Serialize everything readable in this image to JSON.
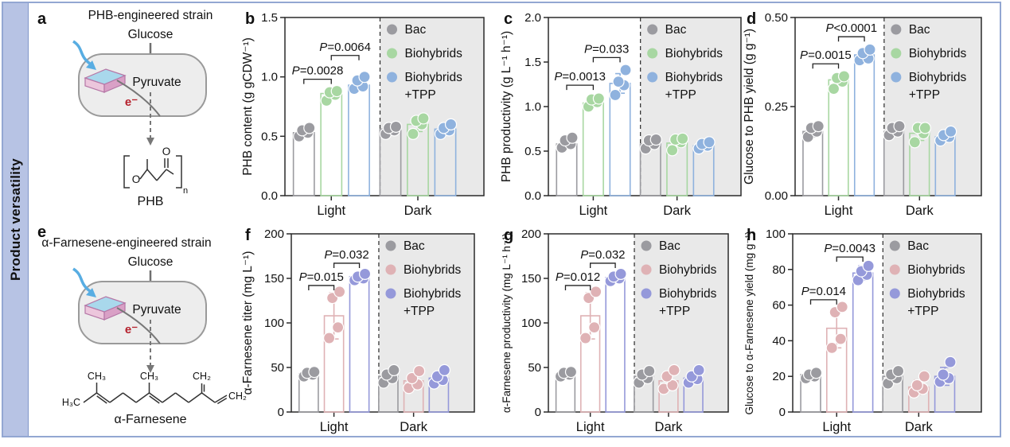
{
  "sidebar": {
    "label": "Product versatility"
  },
  "colors": {
    "gray": "#9b9ba0",
    "green": "#a8d7a2",
    "blue": "#8fb2de",
    "pink": "#dfb2b5",
    "purple": "#9599da",
    "shade": "#e9e9e9",
    "axis": "#2a2a2a",
    "cell_fill": "#ededed",
    "cell_stroke": "#9a9a9a",
    "arrow_gray": "#6f6f6f",
    "light_arrow": "#58ade2",
    "electron_red": "#b5202c",
    "slab_top": "#a9d8ec",
    "slab_front": "#ecc6dc",
    "slab_side": "#d9a0c6",
    "slab_stroke": "#b576a6",
    "frame": "#93a7d2",
    "sidebar_bg": "#b7c3e4"
  },
  "legend": {
    "entries": [
      {
        "label": "Bac"
      },
      {
        "label": "Biohybrids"
      },
      {
        "label": "Biohybrids",
        "label2": "+TPP"
      }
    ]
  },
  "diagrams": [
    {
      "panel": "a",
      "title": "PHB-engineered strain",
      "substrate": "Glucose",
      "intermediate": "Pyruvate",
      "electron": "e⁻",
      "product": "PHB",
      "structure": "phb",
      "atoms": {
        "ring_o": "O",
        "carbonyl_o": "O",
        "subscript": "n"
      }
    },
    {
      "panel": "e",
      "title": "α-Farnesene-engineered strain",
      "substrate": "Glucose",
      "intermediate": "Pyruvate",
      "electron": "e⁻",
      "product": "α-Farnesene",
      "structure": "farnesene",
      "atoms": {
        "h3c": "H₃C",
        "ch3_1": "CH₃",
        "ch3_2": "CH₃",
        "ch2_top": "CH₂",
        "ch2_end": "CH₂"
      }
    }
  ],
  "chart_data": [
    {
      "panel": "b",
      "type": "bar",
      "ylabel": "PHB content (g gCDW⁻¹)",
      "ylim": [
        0,
        1.5
      ],
      "yticks": [
        "0.0",
        "0.5",
        "1.0",
        "1.5"
      ],
      "groups": [
        "Light",
        "Dark"
      ],
      "series": [
        {
          "name": "Bac",
          "color": "gray",
          "bars": [
            0.53,
            0.56
          ],
          "errors": [
            0.03,
            0.03
          ],
          "points": [
            [
              0.5,
              0.53,
              0.55,
              0.57
            ],
            [
              0.52,
              0.55,
              0.57,
              0.58
            ]
          ]
        },
        {
          "name": "Biohybrids",
          "color": "green",
          "bars": [
            0.86,
            0.6
          ],
          "errors": [
            0.04,
            0.06
          ],
          "points": [
            [
              0.8,
              0.85,
              0.87,
              0.88
            ],
            [
              0.52,
              0.6,
              0.63,
              0.65
            ]
          ]
        },
        {
          "name": "Biohybrids +TPP",
          "color": "blue",
          "bars": [
            0.93,
            0.56
          ],
          "errors": [
            0.04,
            0.03
          ],
          "points": [
            [
              0.9,
              0.92,
              0.97,
              1.0
            ],
            [
              0.52,
              0.55,
              0.57,
              0.6
            ]
          ]
        }
      ],
      "pvalues": [
        {
          "label": "P=0.0028",
          "from": 0,
          "to": 1,
          "y": 0.98
        },
        {
          "label": "P=0.0064",
          "from": 1,
          "to": 2,
          "y": 1.18
        }
      ]
    },
    {
      "panel": "c",
      "type": "bar",
      "ylabel": "PHB productivity (g L⁻¹ h⁻¹)",
      "ylim": [
        0,
        2.0
      ],
      "yticks": [
        "0.0",
        "0.5",
        "1.0",
        "1.5",
        "2.0"
      ],
      "groups": [
        "Light",
        "Dark"
      ],
      "series": [
        {
          "name": "Bac",
          "color": "gray",
          "bars": [
            0.58,
            0.58
          ],
          "errors": [
            0.04,
            0.04
          ],
          "points": [
            [
              0.54,
              0.58,
              0.62,
              0.65
            ],
            [
              0.53,
              0.58,
              0.62,
              0.63
            ]
          ]
        },
        {
          "name": "Biohybrids",
          "color": "green",
          "bars": [
            1.04,
            0.59
          ],
          "errors": [
            0.04,
            0.05
          ],
          "points": [
            [
              1.0,
              1.05,
              1.08,
              1.09
            ],
            [
              0.51,
              0.6,
              0.63,
              0.64
            ]
          ]
        },
        {
          "name": "Biohybrids +TPP",
          "color": "blue",
          "bars": [
            1.26,
            0.56
          ],
          "errors": [
            0.11,
            0.03
          ],
          "points": [
            [
              1.13,
              1.24,
              1.28,
              1.41
            ],
            [
              0.53,
              0.56,
              0.58,
              0.6
            ]
          ]
        }
      ],
      "pvalues": [
        {
          "label": "P=0.0013",
          "from": 0,
          "to": 1,
          "y": 1.24
        },
        {
          "label": "P=0.033",
          "from": 1,
          "to": 2,
          "y": 1.55
        }
      ]
    },
    {
      "panel": "d",
      "type": "bar",
      "ylabel": "Glucose to PHB yield (g g⁻¹)",
      "ylim": [
        0,
        0.5
      ],
      "yticks": [
        "0.00",
        "0.25",
        "0.50"
      ],
      "groups": [
        "Light",
        "Dark"
      ],
      "series": [
        {
          "name": "Bac",
          "color": "gray",
          "bars": [
            0.18,
            0.18
          ],
          "errors": [
            0.015,
            0.013
          ],
          "points": [
            [
              0.165,
              0.18,
              0.19,
              0.195
            ],
            [
              0.17,
              0.18,
              0.19,
              0.195
            ]
          ]
        },
        {
          "name": "Biohybrids",
          "color": "green",
          "bars": [
            0.325,
            0.175
          ],
          "errors": [
            0.015,
            0.02
          ],
          "points": [
            [
              0.3,
              0.32,
              0.33,
              0.335
            ],
            [
              0.15,
              0.175,
              0.19,
              0.19
            ]
          ]
        },
        {
          "name": "Biohybrids +TPP",
          "color": "blue",
          "bars": [
            0.395,
            0.165
          ],
          "errors": [
            0.015,
            0.012
          ],
          "points": [
            [
              0.38,
              0.385,
              0.4,
              0.41
            ],
            [
              0.155,
              0.165,
              0.17,
              0.18
            ]
          ]
        }
      ],
      "pvalues": [
        {
          "label": "P=0.0015",
          "from": 0,
          "to": 1,
          "y": 0.37
        },
        {
          "label": "P<0.0001",
          "from": 1,
          "to": 2,
          "y": 0.446
        }
      ]
    },
    {
      "panel": "f",
      "type": "bar",
      "ylabel": "α-Farnesene titer (mg L⁻¹)",
      "ylim": [
        0,
        200
      ],
      "yticks": [
        "0",
        "50",
        "100",
        "150",
        "200"
      ],
      "groups": [
        "Light",
        "Dark"
      ],
      "series": [
        {
          "name": "Bac",
          "color": "gray",
          "bars": [
            43,
            40
          ],
          "errors": [
            3,
            6
          ],
          "points": [
            [
              40,
              42,
              44,
              45
            ],
            [
              33,
              38,
              42,
              47
            ]
          ]
        },
        {
          "name": "Biohybrids",
          "color": "pink",
          "bars": [
            108,
            35
          ],
          "errors": [
            26,
            8
          ],
          "points": [
            [
              83,
              95,
              128,
              135
            ],
            [
              27,
              31,
              38,
              46
            ]
          ]
        },
        {
          "name": "Biohybrids +TPP",
          "color": "purple",
          "bars": [
            152,
            38
          ],
          "errors": [
            4,
            6
          ],
          "points": [
            [
              148,
              150,
              152,
              155
            ],
            [
              32,
              36,
              40,
              47
            ]
          ]
        }
      ],
      "pvalues": [
        {
          "label": "P=0.015",
          "from": 0,
          "to": 1,
          "y": 142
        },
        {
          "label": "P=0.032",
          "from": 1,
          "to": 2,
          "y": 167
        }
      ]
    },
    {
      "panel": "g",
      "type": "bar",
      "ylabel": "α-Farnesene productivity (mg L⁻¹ h⁻¹)",
      "ylim": [
        0,
        200
      ],
      "yticks": [
        "0",
        "50",
        "100",
        "150",
        "200"
      ],
      "groups": [
        "Light",
        "Dark"
      ],
      "series": [
        {
          "name": "Bac",
          "color": "gray",
          "bars": [
            43,
            40
          ],
          "errors": [
            2,
            5
          ],
          "points": [
            [
              40,
              42,
              44,
              45
            ],
            [
              33,
              38,
              42,
              46
            ]
          ]
        },
        {
          "name": "Biohybrids",
          "color": "pink",
          "bars": [
            108,
            35
          ],
          "errors": [
            26,
            7
          ],
          "points": [
            [
              83,
              95,
              128,
              135
            ],
            [
              26,
              30,
              40,
              47
            ]
          ]
        },
        {
          "name": "Biohybrids +TPP",
          "color": "purple",
          "bars": [
            151,
            38
          ],
          "errors": [
            4,
            6
          ],
          "points": [
            [
              147,
              150,
              152,
              155
            ],
            [
              33,
              37,
              40,
              47
            ]
          ]
        }
      ],
      "pvalues": [
        {
          "label": "P=0.012",
          "from": 0,
          "to": 1,
          "y": 142
        },
        {
          "label": "P=0.032",
          "from": 1,
          "to": 2,
          "y": 167
        }
      ]
    },
    {
      "panel": "h",
      "type": "bar",
      "ylabel": "Glucose to α-Farnesene yield (mg g⁻¹)",
      "ylim": [
        0,
        100
      ],
      "yticks": [
        "0",
        "20",
        "40",
        "60",
        "80",
        "100"
      ],
      "groups": [
        "Light",
        "Dark"
      ],
      "series": [
        {
          "name": "Bac",
          "color": "gray",
          "bars": [
            21,
            20
          ],
          "errors": [
            1.5,
            3
          ],
          "points": [
            [
              19,
              20,
              21,
              22
            ],
            [
              16,
              19,
              21,
              23
            ]
          ]
        },
        {
          "name": "Biohybrids",
          "color": "pink",
          "bars": [
            47,
            14
          ],
          "errors": [
            11,
            4
          ],
          "points": [
            [
              36,
              41,
              56,
              59
            ],
            [
              11,
              13,
              15,
              20
            ]
          ]
        },
        {
          "name": "Biohybrids +TPP",
          "color": "purple",
          "bars": [
            78,
            20
          ],
          "errors": [
            4,
            5
          ],
          "points": [
            [
              74,
              77,
              79,
              82
            ],
            [
              17,
              19,
              21,
              28
            ]
          ]
        }
      ],
      "pvalues": [
        {
          "label": "P=0.014",
          "from": 0,
          "to": 1,
          "y": 63
        },
        {
          "label": "P=0.0043",
          "from": 1,
          "to": 2,
          "y": 87
        }
      ]
    }
  ]
}
